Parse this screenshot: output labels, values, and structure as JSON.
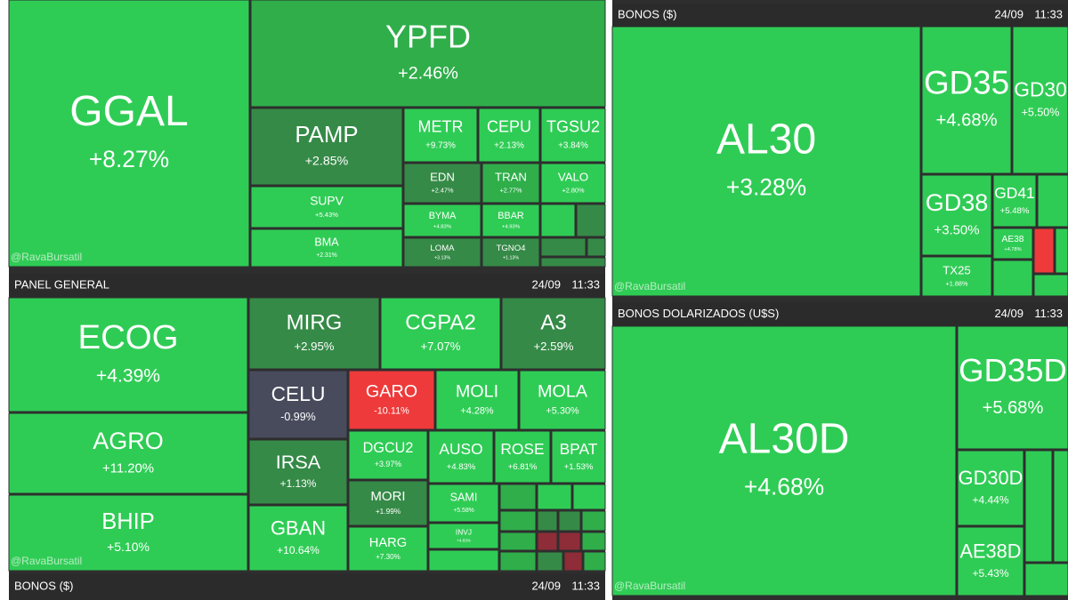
{
  "watermark": "@RavaBursatil",
  "bars": [
    {
      "label": "PANEL GENERAL",
      "date": "24/09",
      "time": "11:33"
    },
    {
      "label": "BONOS ($)",
      "date": "24/09",
      "time": "11:33"
    },
    {
      "label": "BONOS ($)",
      "date": "24/09",
      "time": "11:33"
    },
    {
      "label": "BONOS DOLARIZADOS (U$S)",
      "date": "24/09",
      "time": "11:33"
    }
  ],
  "panels": [
    {
      "tiles": [
        {
          "ticker": "GGAL",
          "change": "+8.27%"
        },
        {
          "ticker": "YPFD",
          "change": "+2.46%"
        },
        {
          "ticker": "PAMP",
          "change": "+2.85%"
        },
        {
          "ticker": "SUPV",
          "change": "+5.43%"
        },
        {
          "ticker": "BMA",
          "change": "+2.31%"
        },
        {
          "ticker": "METR",
          "change": "+9.73%"
        },
        {
          "ticker": "CEPU",
          "change": "+2.13%"
        },
        {
          "ticker": "TGSU2",
          "change": "+3.84%"
        },
        {
          "ticker": "EDN",
          "change": "+2.47%"
        },
        {
          "ticker": "TRAN",
          "change": "+2.77%"
        },
        {
          "ticker": "VALO",
          "change": "+2.80%"
        },
        {
          "ticker": "BYMA",
          "change": "+4.83%"
        },
        {
          "ticker": "BBAR",
          "change": "+4.93%"
        },
        {
          "ticker": "LOMA",
          "change": "+3.13%"
        },
        {
          "ticker": "TGNO4",
          "change": "+1.13%"
        }
      ]
    },
    {
      "tiles": [
        {
          "ticker": "ECOG",
          "change": "+4.39%"
        },
        {
          "ticker": "AGRO",
          "change": "+11.20%"
        },
        {
          "ticker": "BHIP",
          "change": "+5.10%"
        },
        {
          "ticker": "MIRG",
          "change": "+2.95%"
        },
        {
          "ticker": "CGPA2",
          "change": "+7.07%"
        },
        {
          "ticker": "A3",
          "change": "+2.59%"
        },
        {
          "ticker": "CELU",
          "change": "-0.99%"
        },
        {
          "ticker": "GARO",
          "change": "-10.11%"
        },
        {
          "ticker": "MOLI",
          "change": "+4.28%"
        },
        {
          "ticker": "MOLA",
          "change": "+5.30%"
        },
        {
          "ticker": "IRSA",
          "change": "+1.13%"
        },
        {
          "ticker": "GBAN",
          "change": "+10.64%"
        },
        {
          "ticker": "DGCU2",
          "change": "+3.97%"
        },
        {
          "ticker": "MORI",
          "change": "+1.99%"
        },
        {
          "ticker": "HARG",
          "change": "+7.30%"
        },
        {
          "ticker": "AUSO",
          "change": "+4.83%"
        },
        {
          "ticker": "ROSE",
          "change": "+6.81%"
        },
        {
          "ticker": "BPAT",
          "change": "+1.53%"
        },
        {
          "ticker": "SAMI",
          "change": "+5.58%"
        },
        {
          "ticker": "INVJ",
          "change": "+4.83%"
        }
      ]
    },
    {
      "tiles": [
        {
          "ticker": "AL30",
          "change": "+3.28%"
        },
        {
          "ticker": "GD35",
          "change": "+4.68%"
        },
        {
          "ticker": "GD30",
          "change": "+5.50%"
        },
        {
          "ticker": "GD38",
          "change": "+3.50%"
        },
        {
          "ticker": "TX25",
          "change": "+1.88%"
        },
        {
          "ticker": "GD41",
          "change": "+5.48%"
        },
        {
          "ticker": "AE38",
          "change": "+4.78%"
        }
      ]
    },
    {
      "tiles": [
        {
          "ticker": "AL30D",
          "change": "+4.68%"
        },
        {
          "ticker": "GD35D",
          "change": "+5.68%"
        },
        {
          "ticker": "GD30D",
          "change": "+4.44%"
        },
        {
          "ticker": "AE38D",
          "change": "+5.43%"
        }
      ]
    }
  ]
}
